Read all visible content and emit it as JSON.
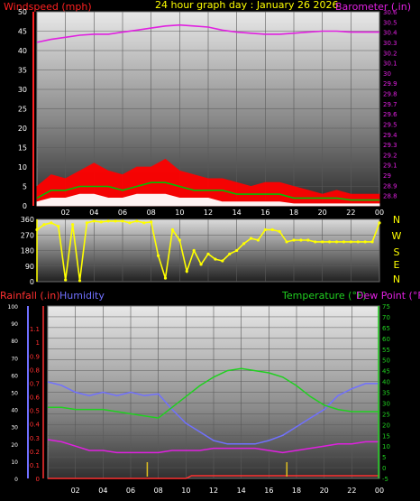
{
  "header": {
    "left_label": "Windspeed (mph)",
    "center_label": "24 hour graph day : January 26 2026",
    "right_label": "Barometer (.in)"
  },
  "colors": {
    "windspeed": "#ff0000",
    "wind_avg": "#00c000",
    "wind_light": "#ffffff",
    "barometer": "#e020e0",
    "direction": "#ffff00",
    "rainfall": "#ff3030",
    "humidity": "#7070ff",
    "temperature": "#20d020",
    "dew_point": "#e020e0",
    "text_white": "#ffffff",
    "text_yellow": "#ffff00"
  },
  "x_ticks": [
    "02",
    "04",
    "06",
    "08",
    "10",
    "12",
    "14",
    "16",
    "18",
    "20",
    "22",
    "00"
  ],
  "direction_letters": [
    "N",
    "W",
    "S",
    "E",
    "N"
  ],
  "chart_data": [
    {
      "type": "line",
      "title": "24 hour graph day : January 26 2026",
      "ylabel": "Windspeed (mph)",
      "y2label": "Barometer (.in)",
      "ylim": [
        0,
        50
      ],
      "y2lim": [
        28.7,
        30.6
      ],
      "yticks": [
        "50",
        "45",
        "40",
        "35",
        "30",
        "25",
        "20",
        "15",
        "10",
        "5",
        "0"
      ],
      "y2ticks": [
        "30.6",
        "30.5",
        "30.4",
        "30.3",
        "30.2",
        "30.1",
        "30",
        "29.9",
        "29.8",
        "29.7",
        "29.6",
        "29.5",
        "29.4",
        "29.3",
        "29.2",
        "29.1",
        "29",
        "28.9",
        "28.8"
      ],
      "xlim": [
        0,
        24
      ],
      "series": [
        {
          "name": "Windspeed (mph)",
          "axis": "left",
          "color": "#ff0000",
          "style": "filled",
          "x": [
            0,
            1,
            2,
            3,
            4,
            5,
            6,
            7,
            8,
            9,
            10,
            11,
            12,
            13,
            14,
            15,
            16,
            17,
            18,
            19,
            20,
            21,
            22,
            23,
            24
          ],
          "values": [
            5,
            8,
            7,
            9,
            11,
            9,
            8,
            10,
            10,
            12,
            9,
            8,
            7,
            7,
            6,
            5,
            6,
            6,
            5,
            4,
            3,
            4,
            3,
            3,
            3
          ]
        },
        {
          "name": "Wind average",
          "axis": "left",
          "color": "#00c000",
          "style": "line",
          "x": [
            0,
            1,
            2,
            3,
            4,
            5,
            6,
            7,
            8,
            9,
            10,
            11,
            12,
            13,
            14,
            15,
            16,
            17,
            18,
            19,
            20,
            21,
            22,
            23,
            24
          ],
          "values": [
            2,
            4,
            4,
            5,
            5,
            5,
            4,
            5,
            6,
            6,
            5,
            4,
            4,
            4,
            3,
            3,
            3,
            3,
            2,
            2,
            2,
            2,
            1.5,
            1.5,
            1.5
          ]
        },
        {
          "name": "Wind light",
          "axis": "left",
          "color": "#ffffff",
          "style": "filled",
          "x": [
            0,
            1,
            2,
            3,
            4,
            5,
            6,
            7,
            8,
            9,
            10,
            11,
            12,
            13,
            14,
            15,
            16,
            17,
            18,
            19,
            20,
            21,
            22,
            23,
            24
          ],
          "values": [
            1,
            2,
            2,
            3,
            3,
            2,
            2,
            3,
            3,
            3,
            2,
            2,
            2,
            1,
            1,
            1,
            1,
            1,
            0.5,
            0.5,
            0.5,
            0.5,
            0.5,
            0.5,
            0.5
          ]
        },
        {
          "name": "Barometer (.in)",
          "axis": "right",
          "color": "#e020e0",
          "style": "line",
          "x": [
            0,
            1,
            2,
            3,
            4,
            5,
            6,
            7,
            8,
            9,
            10,
            11,
            12,
            13,
            14,
            15,
            16,
            17,
            18,
            19,
            20,
            21,
            22,
            23,
            24
          ],
          "values": [
            30.3,
            30.33,
            30.35,
            30.37,
            30.38,
            30.38,
            30.4,
            30.42,
            30.44,
            30.46,
            30.47,
            30.46,
            30.45,
            30.42,
            30.4,
            30.39,
            30.38,
            30.38,
            30.39,
            30.4,
            30.41,
            30.41,
            30.4,
            30.4,
            30.4
          ]
        }
      ]
    },
    {
      "type": "scatter",
      "ylabel": "Direction",
      "ylim": [
        0,
        360
      ],
      "yticks": [
        "360",
        "270",
        "180",
        "90",
        "0"
      ],
      "xlim": [
        0,
        24
      ],
      "series": [
        {
          "name": "Wind direction",
          "color": "#ffff00",
          "x": [
            0,
            0.5,
            1,
            1.5,
            2,
            2.5,
            3,
            3.5,
            4,
            4.5,
            5,
            5.5,
            6,
            6.5,
            7,
            7.5,
            8,
            8.5,
            9,
            9.5,
            10,
            10.5,
            11,
            11.5,
            12,
            12.5,
            13,
            13.5,
            14,
            14.5,
            15,
            15.5,
            16,
            16.5,
            17,
            17.5,
            18,
            18.5,
            19,
            19.5,
            20,
            20.5,
            21,
            21.5,
            22,
            22.5,
            23,
            23.5,
            24
          ],
          "values": [
            300,
            330,
            340,
            320,
            10,
            330,
            5,
            340,
            350,
            345,
            350,
            350,
            350,
            340,
            350,
            340,
            345,
            150,
            20,
            300,
            240,
            60,
            180,
            100,
            160,
            130,
            120,
            160,
            180,
            220,
            250,
            240,
            300,
            300,
            290,
            230,
            240,
            240,
            240,
            230,
            230,
            230,
            230,
            230,
            230,
            230,
            230,
            230,
            340
          ]
        }
      ]
    },
    {
      "type": "line",
      "ylabel": "Rainfall (.in)",
      "y2label": "Temperature (°F)",
      "y3label": "Dew Point (°F)",
      "y4label": "Humidity",
      "ylim": [
        0,
        1.2
      ],
      "yticks": [
        "1.1",
        "1",
        "0.9",
        "0.8",
        "0.7",
        "0.6",
        "0.5",
        "0.4",
        "0.3",
        "0.2",
        "0.1",
        "0"
      ],
      "y2lim": [
        -5,
        75
      ],
      "y2ticks": [
        "75",
        "70",
        "65",
        "60",
        "55",
        "50",
        "45",
        "40",
        "35",
        "30",
        "25",
        "20",
        "15",
        "10",
        "5",
        "0",
        "-5"
      ],
      "y3lim": [
        0,
        100
      ],
      "y3ticks": [
        "100",
        "90",
        "80",
        "70",
        "60",
        "50",
        "40",
        "30",
        "20",
        "10",
        "0"
      ],
      "xlim": [
        0,
        24
      ],
      "series": [
        {
          "name": "Humidity",
          "axis": "hum",
          "color": "#7070ff",
          "x": [
            0,
            1,
            2,
            3,
            4,
            5,
            6,
            7,
            8,
            9,
            10,
            11,
            12,
            13,
            14,
            15,
            16,
            17,
            18,
            19,
            20,
            21,
            22,
            23,
            24
          ],
          "values": [
            56,
            54,
            50,
            48,
            50,
            48,
            50,
            48,
            49,
            40,
            32,
            27,
            22,
            20,
            20,
            20,
            22,
            25,
            30,
            35,
            40,
            48,
            52,
            55,
            55
          ]
        },
        {
          "name": "Temperature (°F)",
          "axis": "temp",
          "color": "#20d020",
          "x": [
            0,
            1,
            2,
            3,
            4,
            5,
            6,
            7,
            8,
            9,
            10,
            11,
            12,
            13,
            14,
            15,
            16,
            17,
            18,
            19,
            20,
            21,
            22,
            23,
            24
          ],
          "values": [
            28,
            28,
            27,
            27,
            27,
            26,
            25,
            24,
            23,
            28,
            33,
            38,
            42,
            45,
            46,
            45,
            44,
            42,
            38,
            33,
            29,
            27,
            26,
            26,
            26
          ]
        },
        {
          "name": "Dew Point (°F)",
          "axis": "temp",
          "color": "#e020e0",
          "x": [
            0,
            1,
            2,
            3,
            4,
            5,
            6,
            7,
            8,
            9,
            10,
            11,
            12,
            13,
            14,
            15,
            16,
            17,
            18,
            19,
            20,
            21,
            22,
            23,
            24
          ],
          "values": [
            13,
            12,
            10,
            8,
            8,
            7,
            7,
            7,
            7,
            8,
            8,
            8,
            9,
            9,
            9,
            9,
            8,
            7,
            8,
            9,
            10,
            11,
            11,
            12,
            12
          ]
        },
        {
          "name": "Rainfall (.in)",
          "axis": "rain",
          "color": "#ff3030",
          "x": [
            0,
            1,
            2,
            3,
            4,
            5,
            6,
            7,
            8,
            9,
            10,
            10.4,
            11,
            12,
            13,
            14,
            15,
            16,
            17,
            18,
            19,
            20,
            21,
            22,
            23,
            24
          ],
          "values": [
            0,
            0,
            0,
            0,
            0,
            0,
            0,
            0,
            0,
            0,
            0,
            0.02,
            0.02,
            0.02,
            0.02,
            0.02,
            0.02,
            0.02,
            0.02,
            0.02,
            0.02,
            0.02,
            0.02,
            0.02,
            0.02,
            0.02
          ]
        }
      ]
    }
  ],
  "rain_ticks_x": [
    7.2,
    17.3
  ]
}
